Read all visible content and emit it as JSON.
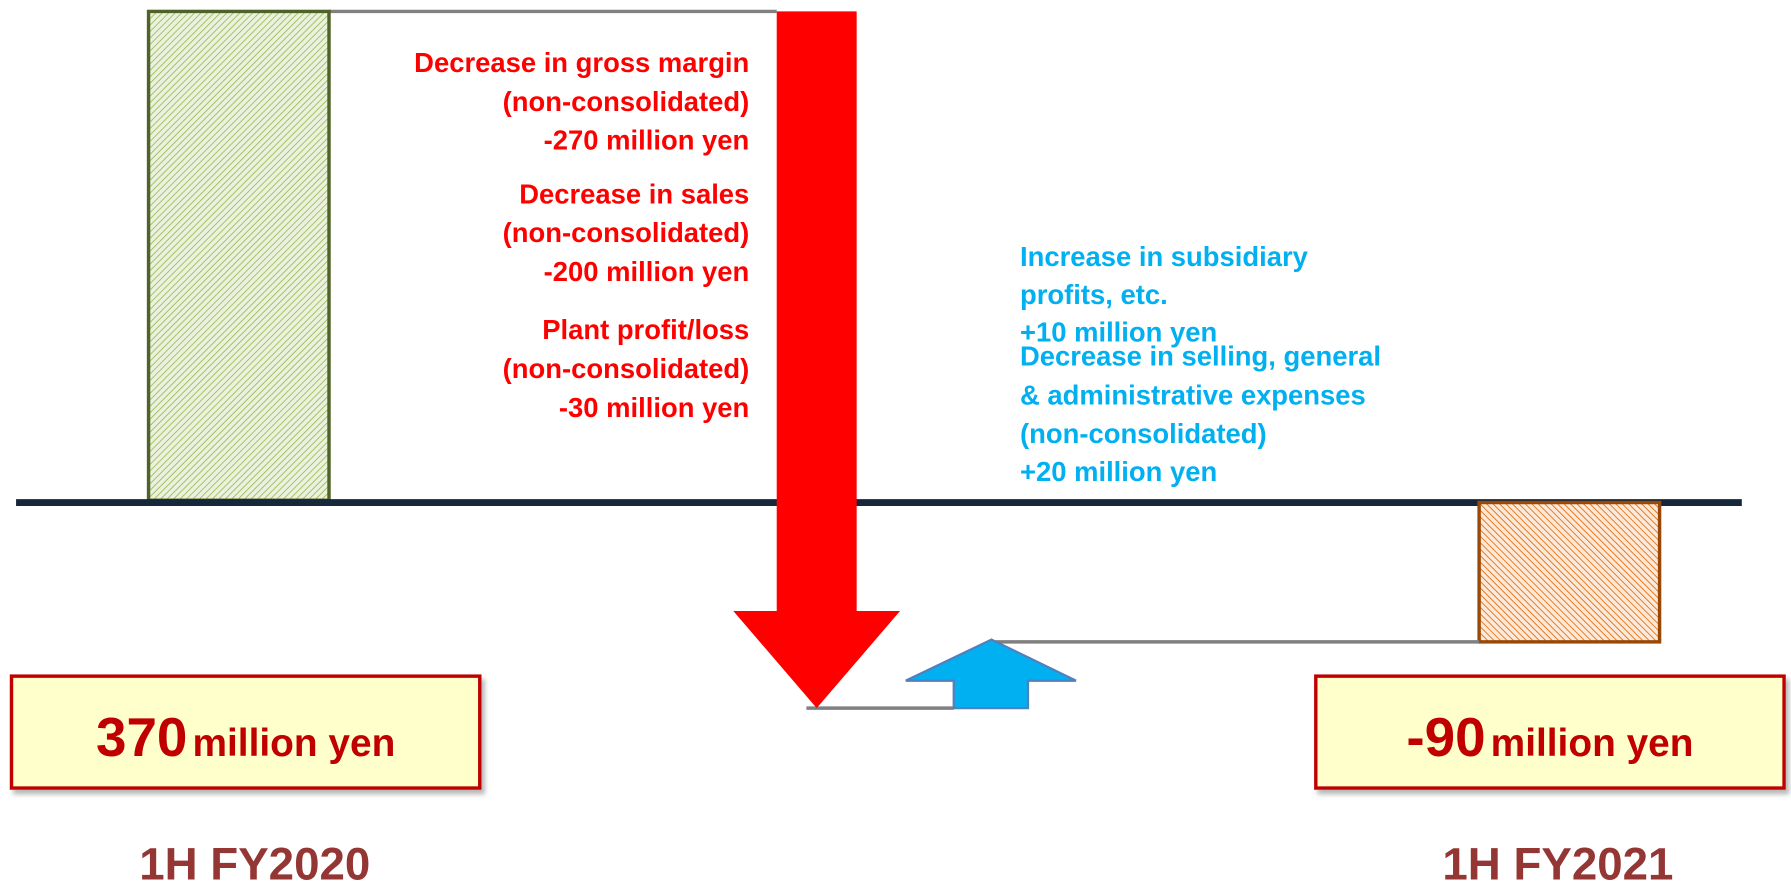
{
  "periods": [
    {
      "label": "1H FY2020",
      "value": "370",
      "unit": "million yen"
    },
    {
      "label": "1H FY2021",
      "value": "-90",
      "unit": "million yen"
    }
  ],
  "decreases": [
    {
      "lines": [
        "Decrease in gross margin",
        "(non-consolidated)",
        "-270 million yen"
      ]
    },
    {
      "lines": [
        "Decrease in sales",
        "(non-consolidated)",
        "-200 million yen"
      ]
    },
    {
      "lines": [
        "Plant profit/loss",
        "(non-consolidated)",
        "-30 million yen"
      ]
    }
  ],
  "increases": [
    {
      "lines": [
        "Increase in subsidiary",
        "profits, etc.",
        "+10 million yen"
      ]
    },
    {
      "lines": [
        "Decrease in selling, general",
        "& administrative expenses",
        "(non-consolidated)",
        "+20 million yen"
      ]
    }
  ]
}
